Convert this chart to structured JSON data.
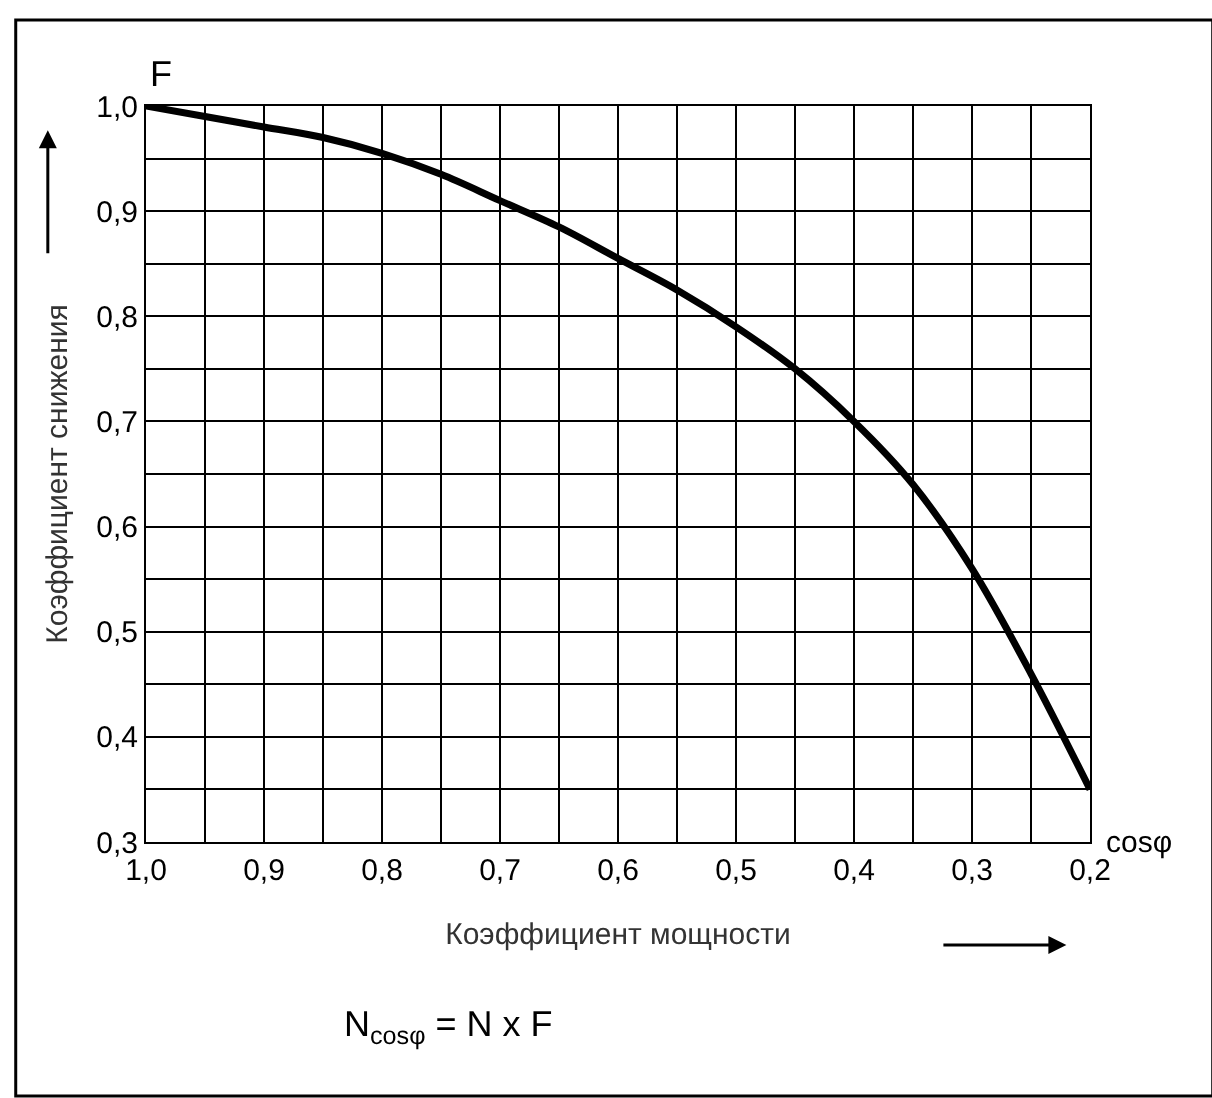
{
  "chart_data": {
    "type": "line",
    "xlabel": "Коэффициент мощности",
    "ylabel": "Коэффициент снижения",
    "annotations": [
      "F",
      "cosφ",
      "N$_{cosφ}$ = N x F"
    ],
    "x": [
      1.0,
      0.95,
      0.9,
      0.85,
      0.8,
      0.75,
      0.7,
      0.65,
      0.6,
      0.55,
      0.5,
      0.45,
      0.4,
      0.35,
      0.3,
      0.25,
      0.2
    ],
    "series": [
      {
        "color": "#000000",
        "values": [
          1.0,
          0.99,
          0.98,
          0.97,
          0.955,
          0.935,
          0.91,
          0.885,
          0.855,
          0.825,
          0.79,
          0.75,
          0.7,
          0.64,
          0.56,
          0.46,
          0.35
        ]
      }
    ],
    "xlim": [
      1.0,
      0.2
    ],
    "ylim": [
      0.3,
      1.0
    ],
    "xticks": [
      {
        "value": 1.0,
        "label": "1,0"
      },
      {
        "value": 0.95,
        "label": null
      },
      {
        "value": 0.9,
        "label": "0,9"
      },
      {
        "value": 0.85,
        "label": null
      },
      {
        "value": 0.8,
        "label": "0,8"
      },
      {
        "value": 0.75,
        "label": null
      },
      {
        "value": 0.7,
        "label": "0,7"
      },
      {
        "value": 0.65,
        "label": null
      },
      {
        "value": 0.6,
        "label": "0,6"
      },
      {
        "value": 0.55,
        "label": null
      },
      {
        "value": 0.5,
        "label": "0,5"
      },
      {
        "value": 0.45,
        "label": null
      },
      {
        "value": 0.4,
        "label": "0,4"
      },
      {
        "value": 0.35,
        "label": null
      },
      {
        "value": 0.3,
        "label": "0,3"
      },
      {
        "value": 0.25,
        "label": null
      },
      {
        "value": 0.2,
        "label": "0,2"
      }
    ],
    "yticks": [
      {
        "value": 0.3,
        "label": "0,3"
      },
      {
        "value": 0.35,
        "label": null
      },
      {
        "value": 0.4,
        "label": "0,4"
      },
      {
        "value": 0.45,
        "label": null
      },
      {
        "value": 0.5,
        "label": "0,5"
      },
      {
        "value": 0.55,
        "label": null
      },
      {
        "value": 0.6,
        "label": "0,6"
      },
      {
        "value": 0.65,
        "label": null
      },
      {
        "value": 0.7,
        "label": "0,7"
      },
      {
        "value": 0.75,
        "label": null
      },
      {
        "value": 0.8,
        "label": "0,8"
      },
      {
        "value": 0.85,
        "label": null
      },
      {
        "value": 0.9,
        "label": "0,9"
      },
      {
        "value": 0.95,
        "label": null
      },
      {
        "value": 1.0,
        "label": "1,0"
      }
    ],
    "grid": true,
    "marker": "none",
    "line_style": "solid"
  }
}
